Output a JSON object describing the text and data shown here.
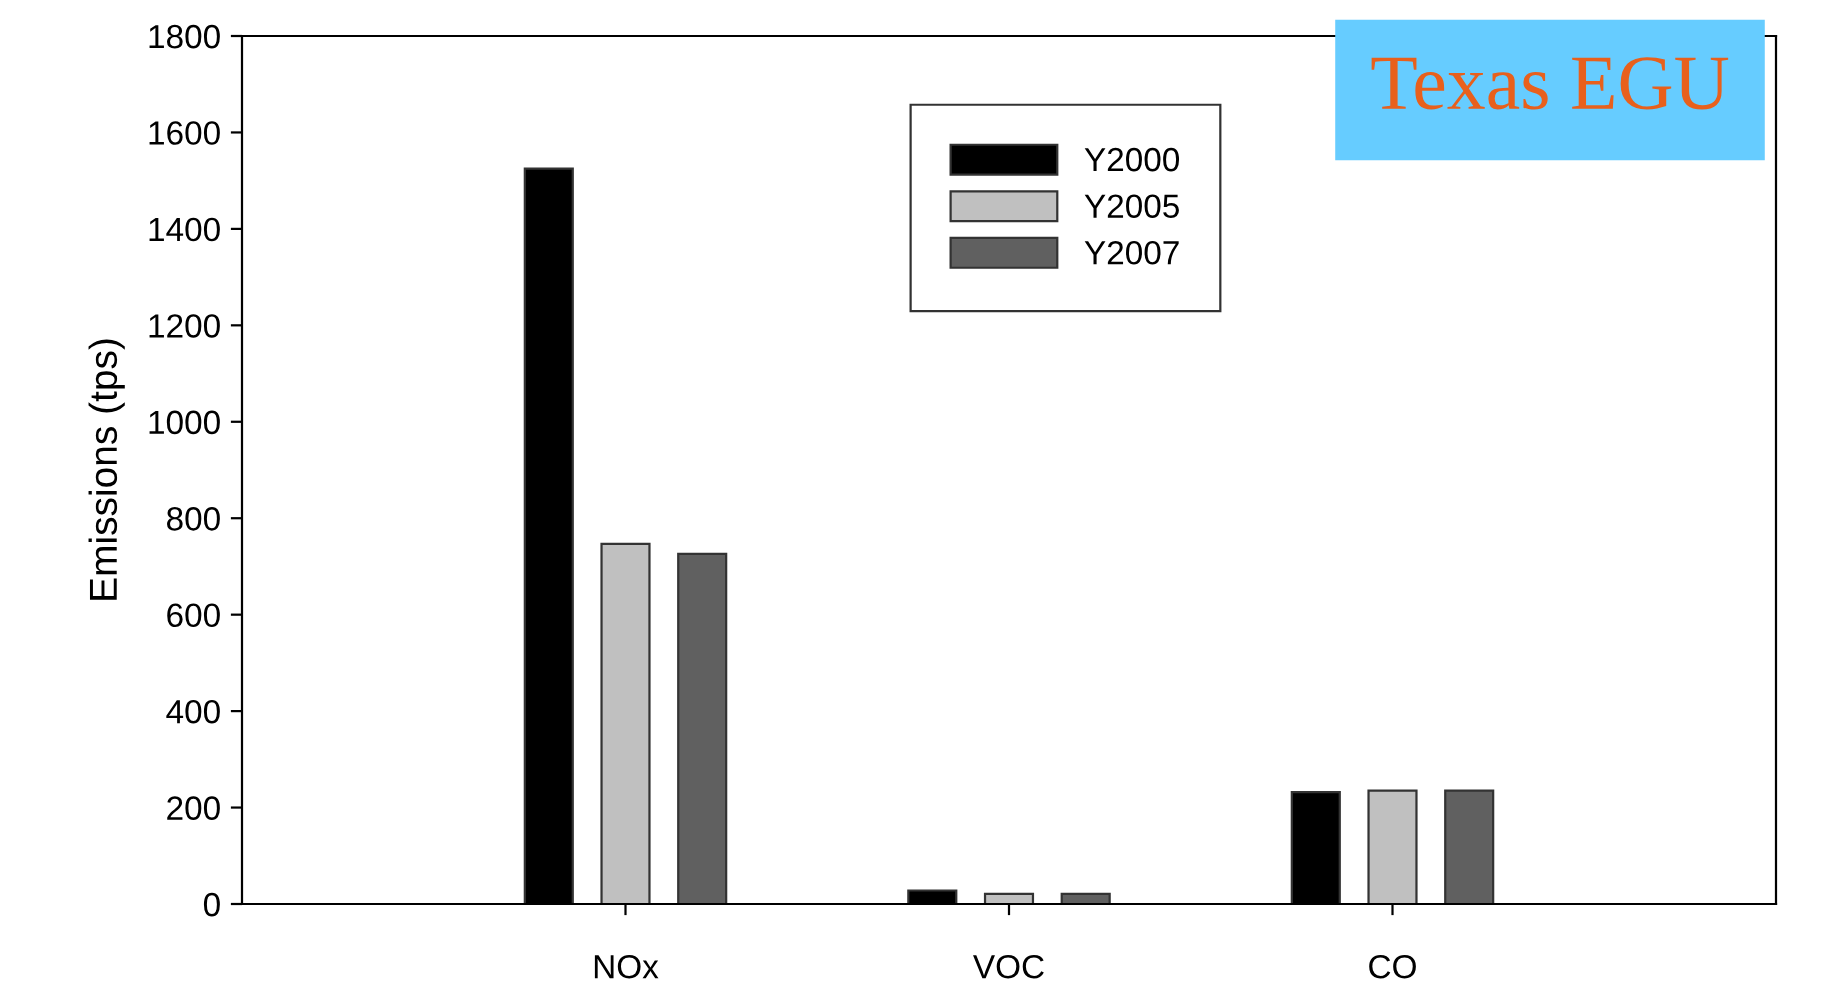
{
  "chart_data": {
    "type": "bar",
    "title": "Texas EGU",
    "ylabel": "Emissions (tps)",
    "categories": [
      "NOx",
      "VOC",
      "CO"
    ],
    "series": [
      {
        "name": "Y2000",
        "color": "#000000",
        "values": [
          1525,
          28,
          232
        ]
      },
      {
        "name": "Y2005",
        "color": "#c0c0c0",
        "values": [
          747,
          21,
          235
        ]
      },
      {
        "name": "Y2007",
        "color": "#606060",
        "values": [
          726,
          21,
          235
        ]
      }
    ],
    "ylim": [
      0,
      1800
    ],
    "yticks": [
      0,
      200,
      400,
      600,
      800,
      1000,
      1200,
      1400,
      1600,
      1800
    ],
    "grid": false,
    "legend": "top right"
  }
}
